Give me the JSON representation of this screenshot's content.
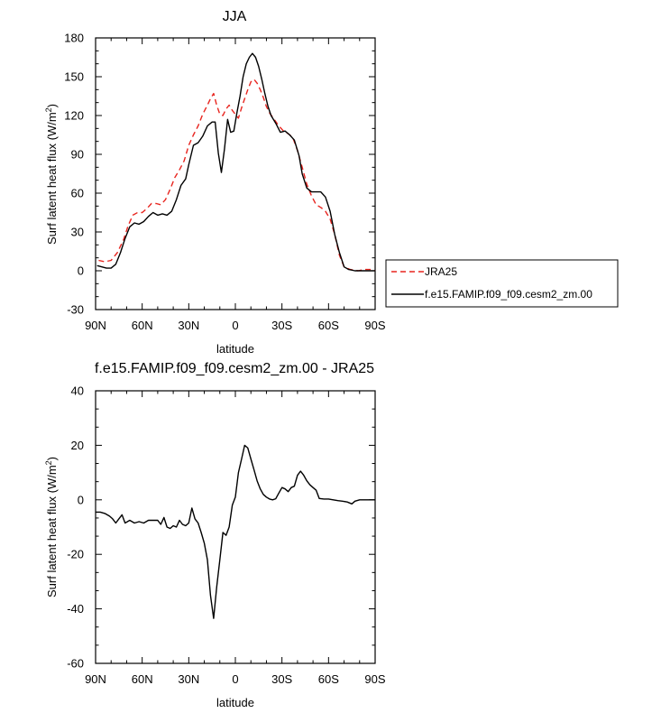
{
  "chart_data": [
    {
      "type": "line",
      "title": "JJA",
      "xlabel": "latitude",
      "ylabel": "Surf latent heat flux (W/m",
      "ylabel_sup": "2",
      "ylabel_close": ")",
      "xlim": [
        90,
        -90
      ],
      "ylim": [
        -30,
        180
      ],
      "xticks": [
        90,
        60,
        30,
        0,
        -30,
        -60,
        -90
      ],
      "xtick_labels": [
        "90N",
        "60N",
        "30N",
        "0",
        "30S",
        "60S",
        "90S"
      ],
      "yticks": [
        -30,
        0,
        30,
        60,
        90,
        120,
        150,
        180
      ],
      "ytick_labels": [
        "-30",
        "0",
        "30",
        "60",
        "90",
        "120",
        "150",
        "180"
      ],
      "legend_position": "right",
      "series": [
        {
          "name": "JRA25",
          "color": "#e8251f",
          "dash": "dashed",
          "points": [
            [
              88,
              8
            ],
            [
              84,
              7
            ],
            [
              80,
              8
            ],
            [
              76,
              14
            ],
            [
              72,
              24
            ],
            [
              69,
              35
            ],
            [
              66,
              43
            ],
            [
              63,
              45
            ],
            [
              60,
              45
            ],
            [
              57,
              48
            ],
            [
              54,
              52
            ],
            [
              51,
              52
            ],
            [
              48,
              51
            ],
            [
              45,
              55
            ],
            [
              42,
              63
            ],
            [
              39,
              72
            ],
            [
              36,
              78
            ],
            [
              33,
              85
            ],
            [
              30,
              97
            ],
            [
              27,
              105
            ],
            [
              24,
              112
            ],
            [
              21,
              121
            ],
            [
              18,
              128
            ],
            [
              16,
              133
            ],
            [
              14,
              137
            ],
            [
              12,
              128
            ],
            [
              10,
              121
            ],
            [
              8,
              120
            ],
            [
              6,
              125
            ],
            [
              4,
              128
            ],
            [
              2,
              124
            ],
            [
              0,
              121
            ],
            [
              -2,
              118
            ],
            [
              -4,
              126
            ],
            [
              -6,
              133
            ],
            [
              -8,
              140
            ],
            [
              -10,
              146
            ],
            [
              -12,
              148
            ],
            [
              -14,
              145
            ],
            [
              -16,
              140
            ],
            [
              -18,
              134
            ],
            [
              -20,
              127
            ],
            [
              -22,
              122
            ],
            [
              -25,
              117
            ],
            [
              -28,
              112
            ],
            [
              -31,
              108
            ],
            [
              -34,
              106
            ],
            [
              -37,
              103
            ],
            [
              -40,
              93
            ],
            [
              -43,
              80
            ],
            [
              -46,
              67
            ],
            [
              -49,
              58
            ],
            [
              -52,
              51
            ],
            [
              -55,
              49
            ],
            [
              -58,
              46
            ],
            [
              -61,
              40
            ],
            [
              -64,
              28
            ],
            [
              -67,
              12
            ],
            [
              -70,
              3
            ],
            [
              -74,
              1
            ],
            [
              -79,
              0
            ],
            [
              -83,
              1
            ],
            [
              -87,
              1
            ],
            [
              -90,
              0
            ]
          ]
        },
        {
          "name": "f.e15.FAMIP.f09_f09.cesm2_zm.00",
          "color": "#000000",
          "dash": "solid",
          "points": [
            [
              89,
              4
            ],
            [
              86,
              3
            ],
            [
              83,
              2
            ],
            [
              80,
              2
            ],
            [
              77,
              5
            ],
            [
              74,
              14
            ],
            [
              71,
              25
            ],
            [
              68,
              34
            ],
            [
              65,
              37
            ],
            [
              62,
              36
            ],
            [
              59,
              38
            ],
            [
              56,
              42
            ],
            [
              53,
              45
            ],
            [
              50,
              43
            ],
            [
              47,
              44
            ],
            [
              44,
              43
            ],
            [
              41,
              46
            ],
            [
              38,
              55
            ],
            [
              35,
              66
            ],
            [
              32,
              71
            ],
            [
              30,
              82
            ],
            [
              27,
              97
            ],
            [
              24,
              99
            ],
            [
              21,
              104
            ],
            [
              18,
              112
            ],
            [
              15,
              115
            ],
            [
              13,
              115
            ],
            [
              11,
              91
            ],
            [
              9,
              76
            ],
            [
              7,
              94
            ],
            [
              5,
              117
            ],
            [
              3,
              107
            ],
            [
              1,
              108
            ],
            [
              -1,
              122
            ],
            [
              -3,
              135
            ],
            [
              -5,
              150
            ],
            [
              -7,
              160
            ],
            [
              -9,
              165
            ],
            [
              -11,
              168
            ],
            [
              -13,
              165
            ],
            [
              -15,
              158
            ],
            [
              -17,
              148
            ],
            [
              -19,
              137
            ],
            [
              -21,
              127
            ],
            [
              -23,
              120
            ],
            [
              -26,
              114
            ],
            [
              -29,
              107
            ],
            [
              -32,
              108
            ],
            [
              -35,
              105
            ],
            [
              -38,
              101
            ],
            [
              -41,
              89
            ],
            [
              -43,
              75
            ],
            [
              -46,
              64
            ],
            [
              -49,
              61
            ],
            [
              -52,
              61
            ],
            [
              -55,
              61
            ],
            [
              -58,
              57
            ],
            [
              -61,
              46
            ],
            [
              -64,
              28
            ],
            [
              -67,
              14
            ],
            [
              -70,
              3
            ],
            [
              -73,
              1
            ],
            [
              -77,
              0
            ],
            [
              -81,
              0
            ],
            [
              -86,
              0
            ],
            [
              -90,
              0
            ]
          ]
        }
      ]
    },
    {
      "type": "line",
      "title": "f.e15.FAMIP.f09_f09.cesm2_zm.00 - JRA25",
      "xlabel": "latitude",
      "ylabel": "Surf latent heat flux (W/m",
      "ylabel_sup": "2",
      "ylabel_close": ")",
      "xlim": [
        90,
        -90
      ],
      "ylim": [
        -60,
        40
      ],
      "xticks": [
        90,
        60,
        30,
        0,
        -30,
        -60,
        -90
      ],
      "xtick_labels": [
        "90N",
        "60N",
        "30N",
        "0",
        "30S",
        "60S",
        "90S"
      ],
      "yticks": [
        -60,
        -40,
        -20,
        0,
        20,
        40
      ],
      "ytick_labels": [
        "-60",
        "-40",
        "-20",
        "0",
        "20",
        "40"
      ],
      "series": [
        {
          "name": "f.e15.FAMIP.f09_f09.cesm2_zm.00 - JRA25",
          "color": "#000000",
          "dash": "solid",
          "points": [
            [
              90,
              -4.5
            ],
            [
              87,
              -4.5
            ],
            [
              84,
              -5
            ],
            [
              81,
              -6
            ],
            [
              79,
              -7
            ],
            [
              77,
              -8.5
            ],
            [
              75,
              -7
            ],
            [
              73,
              -5.5
            ],
            [
              71,
              -8.5
            ],
            [
              68,
              -7.5
            ],
            [
              65,
              -8.5
            ],
            [
              62,
              -8
            ],
            [
              59,
              -8.5
            ],
            [
              56,
              -7.5
            ],
            [
              53,
              -7.5
            ],
            [
              50,
              -7.5
            ],
            [
              48,
              -9
            ],
            [
              46,
              -6.5
            ],
            [
              44,
              -10
            ],
            [
              42,
              -10.5
            ],
            [
              40,
              -9.5
            ],
            [
              38,
              -10
            ],
            [
              36,
              -7.5
            ],
            [
              34,
              -9
            ],
            [
              32,
              -9.5
            ],
            [
              30,
              -8.5
            ],
            [
              28,
              -3
            ],
            [
              26,
              -7
            ],
            [
              24,
              -8.5
            ],
            [
              22,
              -12
            ],
            [
              20,
              -16
            ],
            [
              18,
              -22
            ],
            [
              16,
              -35
            ],
            [
              14,
              -43.5
            ],
            [
              12,
              -32
            ],
            [
              10,
              -22
            ],
            [
              8,
              -12
            ],
            [
              6,
              -13
            ],
            [
              4,
              -10
            ],
            [
              2,
              -2
            ],
            [
              0,
              1
            ],
            [
              -2,
              10
            ],
            [
              -4,
              15
            ],
            [
              -6,
              20
            ],
            [
              -8,
              19
            ],
            [
              -10,
              15
            ],
            [
              -12,
              11
            ],
            [
              -14,
              7
            ],
            [
              -16,
              4
            ],
            [
              -18,
              2
            ],
            [
              -20,
              1
            ],
            [
              -22,
              0.3
            ],
            [
              -24,
              0
            ],
            [
              -26,
              0.4
            ],
            [
              -28,
              2.5
            ],
            [
              -30,
              4.5
            ],
            [
              -32,
              4
            ],
            [
              -34,
              3
            ],
            [
              -36,
              4.5
            ],
            [
              -38,
              5
            ],
            [
              -40,
              9
            ],
            [
              -42,
              10.5
            ],
            [
              -44,
              9
            ],
            [
              -46,
              7
            ],
            [
              -48,
              5.5
            ],
            [
              -50,
              4.5
            ],
            [
              -52,
              3.5
            ],
            [
              -54,
              0.5
            ],
            [
              -57,
              0.3
            ],
            [
              -60,
              0.3
            ],
            [
              -63,
              0
            ],
            [
              -66,
              -0.3
            ],
            [
              -69,
              -0.5
            ],
            [
              -72,
              -0.8
            ],
            [
              -75,
              -1.5
            ],
            [
              -77,
              -0.5
            ],
            [
              -80,
              0
            ],
            [
              -84,
              0
            ],
            [
              -90,
              0
            ]
          ]
        }
      ]
    }
  ]
}
